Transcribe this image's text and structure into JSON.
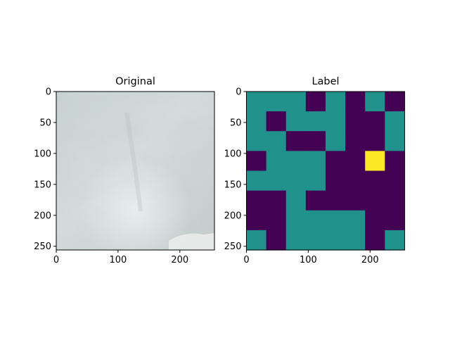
{
  "colors": {
    "class_0": "#440154",
    "class_1": "#21918c",
    "class_2": "#fde725",
    "axes": "#000000"
  },
  "chart_data": [
    {
      "type": "image",
      "title": "Original",
      "xlim": [
        0,
        256
      ],
      "ylim": [
        256,
        0
      ],
      "xticks": [
        0,
        100,
        200
      ],
      "yticks": [
        0,
        50,
        100,
        150,
        200,
        250
      ],
      "image": {
        "description": "pale grey-blue ice/snow texture photo"
      }
    },
    {
      "type": "heatmap",
      "title": "Label",
      "xlim": [
        0,
        256
      ],
      "ylim": [
        256,
        0
      ],
      "xticks": [
        0,
        100,
        200
      ],
      "yticks": [
        0,
        50,
        100,
        150,
        200,
        250
      ],
      "cell_size": 32,
      "grid": [
        [
          1,
          1,
          1,
          0,
          1,
          0,
          1,
          0
        ],
        [
          1,
          0,
          1,
          1,
          1,
          0,
          0,
          1
        ],
        [
          1,
          1,
          0,
          0,
          1,
          0,
          0,
          1
        ],
        [
          0,
          1,
          1,
          1,
          0,
          0,
          2,
          0
        ],
        [
          1,
          1,
          1,
          1,
          0,
          0,
          0,
          0
        ],
        [
          0,
          0,
          1,
          0,
          0,
          0,
          0,
          0
        ],
        [
          0,
          0,
          1,
          1,
          1,
          1,
          0,
          0
        ],
        [
          1,
          0,
          1,
          1,
          1,
          1,
          0,
          1
        ]
      ]
    }
  ]
}
